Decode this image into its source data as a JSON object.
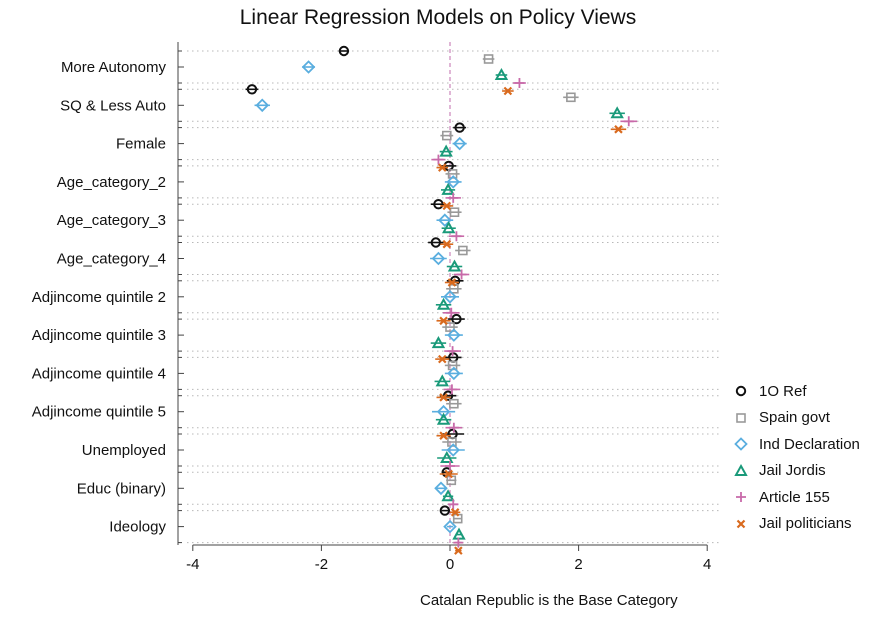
{
  "chart_data": {
    "type": "scatter",
    "title": "Linear Regression Models on Policy Views",
    "xlabel": "Catalan Republic is the Base Category",
    "ylabel": "",
    "xlim": [
      -4.2,
      4.2
    ],
    "xticks": [
      "-4",
      "-2",
      "0",
      "2",
      "4"
    ],
    "reference_line_x": 0,
    "grid": "dotted horizontal",
    "legend_position": "right",
    "categories": [
      "More Autonomy",
      "SQ & Less Auto",
      "Female",
      "Age_category_2",
      "Age_category_3",
      "Age_category_4",
      "Adjincome quintile 2",
      "Adjincome quintile 3",
      "Adjincome quintile 4",
      "Adjincome quintile 5",
      "Unemployed",
      "Educ (binary)",
      "Ideology"
    ],
    "series": [
      {
        "name": "1O Ref",
        "marker": "circle",
        "color": "#111111",
        "values": [
          -1.65,
          -3.08,
          0.15,
          -0.02,
          -0.18,
          -0.22,
          0.08,
          0.1,
          0.05,
          -0.03,
          0.04,
          -0.05,
          -0.08
        ],
        "err": [
          0.08,
          0.1,
          0.1,
          0.12,
          0.12,
          0.12,
          0.13,
          0.13,
          0.13,
          0.13,
          0.18,
          0.08,
          0.05
        ]
      },
      {
        "name": "Spain govt",
        "marker": "square",
        "color": "#999999",
        "values": [
          0.6,
          1.88,
          -0.05,
          0.04,
          0.07,
          0.2,
          0.06,
          0.0,
          0.04,
          0.06,
          0.03,
          0.02,
          0.12
        ],
        "err": [
          0.09,
          0.12,
          0.1,
          0.11,
          0.11,
          0.12,
          0.12,
          0.12,
          0.12,
          0.12,
          0.15,
          0.08,
          0.05
        ]
      },
      {
        "name": "Ind Declaration",
        "marker": "diamond",
        "color": "#5aaedf",
        "values": [
          -2.2,
          -2.92,
          0.15,
          0.05,
          -0.08,
          -0.18,
          0.0,
          0.06,
          0.06,
          -0.1,
          0.05,
          -0.14,
          0.0
        ],
        "err": [
          0.1,
          0.12,
          0.11,
          0.13,
          0.13,
          0.13,
          0.14,
          0.14,
          0.14,
          0.18,
          0.18,
          0.09,
          0.05
        ]
      },
      {
        "name": "Jail Jordis",
        "marker": "triangle",
        "color": "#1a9a7a",
        "values": [
          0.8,
          2.6,
          -0.06,
          -0.03,
          -0.02,
          0.07,
          -0.1,
          -0.18,
          -0.12,
          -0.1,
          -0.05,
          -0.03,
          0.14
        ],
        "err": [
          0.09,
          0.12,
          0.1,
          0.11,
          0.11,
          0.12,
          0.12,
          0.12,
          0.12,
          0.12,
          0.15,
          0.08,
          0.05
        ]
      },
      {
        "name": "Article 155",
        "marker": "plus",
        "color": "#c86aa9",
        "values": [
          1.08,
          2.78,
          -0.18,
          0.05,
          0.1,
          0.18,
          0.02,
          0.04,
          0.03,
          0.06,
          0.0,
          0.05,
          0.13
        ],
        "err": [
          0.1,
          0.13,
          0.11,
          0.12,
          0.12,
          0.12,
          0.13,
          0.13,
          0.13,
          0.13,
          0.15,
          0.08,
          0.05
        ]
      },
      {
        "name": "Jail politicians",
        "marker": "x",
        "color": "#d96a1e",
        "values": [
          0.9,
          2.62,
          -0.12,
          -0.05,
          -0.05,
          0.03,
          -0.1,
          -0.12,
          -0.1,
          -0.1,
          -0.02,
          0.08,
          0.13
        ],
        "err": [
          0.09,
          0.12,
          0.09,
          0.1,
          0.1,
          0.11,
          0.11,
          0.11,
          0.11,
          0.11,
          0.14,
          0.08,
          0.05
        ]
      }
    ]
  }
}
